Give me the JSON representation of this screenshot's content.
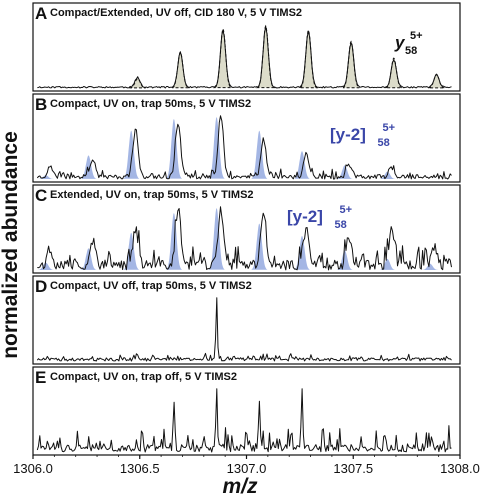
{
  "chart_data": [
    {
      "type": "line",
      "letter": "A",
      "title": "Compact/Extended, UV off, CID 180 V, 5 V TIMS2",
      "annotation": {
        "main": "y",
        "sub": "58",
        "sup": "5+"
      },
      "colors": {
        "filled": "#dcdcca",
        "trace": "#111111"
      },
      "series": [
        {
          "kind": "dashed-filled",
          "x": [
            1306.49,
            1306.69,
            1306.89,
            1307.09,
            1307.29,
            1307.49,
            1307.69,
            1307.89
          ],
          "values": [
            0.15,
            0.58,
            0.95,
            1.0,
            0.93,
            0.75,
            0.48,
            0.22
          ]
        },
        {
          "kind": "solid",
          "x": [
            1306.49,
            1306.69,
            1306.89,
            1307.09,
            1307.29,
            1307.49,
            1307.69,
            1307.89
          ],
          "values": [
            0.16,
            0.56,
            0.93,
            0.97,
            0.91,
            0.73,
            0.45,
            0.2
          ]
        }
      ]
    },
    {
      "type": "line",
      "letter": "B",
      "title": "Compact, UV on, trap 50ms, 5 V TIMS2",
      "annotation": {
        "main": "[y-2]",
        "sub": "58",
        "sup": "5+"
      },
      "colors": {
        "filled": "#9fb2e3",
        "trace": "#111111"
      },
      "series": [
        {
          "kind": "filled",
          "x": [
            1306.06,
            1306.26,
            1306.46,
            1306.66,
            1306.86,
            1307.06,
            1307.26,
            1307.46,
            1307.66
          ],
          "values": [
            0.06,
            0.38,
            0.78,
            0.97,
            1.0,
            0.78,
            0.45,
            0.22,
            0.12
          ]
        },
        {
          "kind": "solid",
          "x": [
            1306.08,
            1306.28,
            1306.48,
            1306.68,
            1306.88,
            1307.08,
            1307.28,
            1307.48,
            1307.68
          ],
          "values": [
            0.16,
            0.3,
            0.75,
            0.88,
            0.98,
            0.6,
            0.37,
            0.2,
            0.15
          ]
        }
      ]
    },
    {
      "type": "line",
      "letter": "C",
      "title": "Extended, UV on, trap 50ms, 5 V TIMS2",
      "annotation": {
        "main": "[y-2]",
        "sub": "58",
        "sup": "5+"
      },
      "colors": {
        "filled": "#9fb2e3",
        "trace": "#111111"
      },
      "series": [
        {
          "kind": "filled",
          "x": [
            1306.06,
            1306.26,
            1306.46,
            1306.66,
            1306.86,
            1307.06,
            1307.26,
            1307.46,
            1307.66,
            1307.86
          ],
          "values": [
            0.12,
            0.35,
            0.6,
            0.92,
            1.0,
            0.75,
            0.55,
            0.32,
            0.18,
            0.1
          ]
        },
        {
          "kind": "solid",
          "x": [
            1306.08,
            1306.28,
            1306.48,
            1306.68,
            1306.88,
            1307.08,
            1307.28,
            1307.48,
            1307.68,
            1307.88
          ],
          "values": [
            0.25,
            0.4,
            0.6,
            0.95,
            0.9,
            0.85,
            0.62,
            0.45,
            0.55,
            0.3
          ]
        }
      ]
    },
    {
      "type": "line",
      "letter": "D",
      "title": "Compact, UV off, trap 50ms, 5 V TIMS2",
      "colors": {
        "trace": "#111111"
      },
      "series": [
        {
          "kind": "solid",
          "x": [
            1306.86
          ],
          "values": [
            1.0
          ]
        }
      ]
    },
    {
      "type": "line",
      "letter": "E",
      "title": "Compact, UV on, trap off, 5 V TIMS2",
      "colors": {
        "trace": "#111111"
      },
      "series": [
        {
          "kind": "solid",
          "x": [
            1306.66,
            1306.86,
            1307.06,
            1307.26
          ],
          "values": [
            0.8,
            0.85,
            0.8,
            0.95
          ]
        }
      ]
    }
  ],
  "axes": {
    "xlabel": "m/z",
    "ylabel": "normalized abundance",
    "xlim": [
      1306.0,
      1308.0
    ],
    "xticks": [
      1306.0,
      1306.5,
      1307.0,
      1307.5,
      1308.0
    ],
    "xtick_labels": [
      "1306.0",
      "1306.5",
      "1307.0",
      "1307.5",
      "1308.0"
    ]
  }
}
